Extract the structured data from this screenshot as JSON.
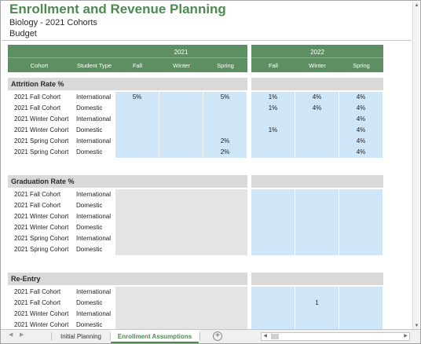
{
  "header": {
    "title": "Enrollment and Revenue Planning",
    "subtitle": "Biology - 2021 Cohorts",
    "scenario": "Budget"
  },
  "columns": {
    "cohort": "Cohort",
    "student_type": "Student Type",
    "years": [
      {
        "label": "2021",
        "terms": [
          "Fall",
          "Winter",
          "Spring"
        ]
      },
      {
        "label": "2022",
        "terms": [
          "Fall",
          "Winter",
          "Spring"
        ]
      }
    ]
  },
  "sections": [
    {
      "title": "Attrition Rate %",
      "rows": [
        {
          "cohort": "2021 Fall Cohort",
          "type": "International",
          "values": [
            "5%",
            "",
            "5%",
            "1%",
            "4%",
            "4%"
          ]
        },
        {
          "cohort": "2021 Fall Cohort",
          "type": "Domestic",
          "values": [
            "",
            "",
            "",
            "1%",
            "4%",
            "4%"
          ]
        },
        {
          "cohort": "2021 Winter Cohort",
          "type": "International",
          "values": [
            "",
            "",
            "",
            "",
            "",
            "4%"
          ]
        },
        {
          "cohort": "2021 Winter Cohort",
          "type": "Domestic",
          "values": [
            "",
            "",
            "",
            "1%",
            "",
            "4%"
          ]
        },
        {
          "cohort": "2021 Spring Cohort",
          "type": "International",
          "values": [
            "",
            "",
            "2%",
            "",
            "",
            "4%"
          ]
        },
        {
          "cohort": "2021 Spring Cohort",
          "type": "Domestic",
          "values": [
            "",
            "",
            "2%",
            "",
            "",
            "4%"
          ]
        }
      ]
    },
    {
      "title": "Graduation Rate %",
      "rows": [
        {
          "cohort": "2021 Fall Cohort",
          "type": "International",
          "values": [
            "",
            "",
            "",
            "",
            "",
            ""
          ]
        },
        {
          "cohort": "2021 Fall Cohort",
          "type": "Domestic",
          "values": [
            "",
            "",
            "",
            "",
            "",
            ""
          ]
        },
        {
          "cohort": "2021 Winter Cohort",
          "type": "International",
          "values": [
            "",
            "",
            "",
            "",
            "",
            ""
          ]
        },
        {
          "cohort": "2021 Winter Cohort",
          "type": "Domestic",
          "values": [
            "",
            "",
            "",
            "",
            "",
            ""
          ]
        },
        {
          "cohort": "2021 Spring Cohort",
          "type": "International",
          "values": [
            "",
            "",
            "",
            "",
            "",
            ""
          ]
        },
        {
          "cohort": "2021 Spring Cohort",
          "type": "Domestic",
          "values": [
            "",
            "",
            "",
            "",
            "",
            ""
          ]
        }
      ]
    },
    {
      "title": "Re-Entry",
      "rows": [
        {
          "cohort": "2021 Fall Cohort",
          "type": "International",
          "values": [
            "",
            "",
            "",
            "",
            "",
            ""
          ]
        },
        {
          "cohort": "2021 Fall Cohort",
          "type": "Domestic",
          "values": [
            "",
            "",
            "",
            "",
            "1",
            ""
          ]
        },
        {
          "cohort": "2021 Winter Cohort",
          "type": "International",
          "values": [
            "",
            "",
            "",
            "",
            "",
            ""
          ]
        },
        {
          "cohort": "2021 Winter Cohort",
          "type": "Domestic",
          "values": [
            "",
            "",
            "",
            "",
            "",
            ""
          ]
        },
        {
          "cohort": "2021 Spring Cohort",
          "type": "International",
          "values": [
            "",
            "",
            "",
            "",
            "",
            ""
          ]
        }
      ]
    }
  ],
  "sheet_tabs": [
    {
      "label": "Initial Planning",
      "active": false
    },
    {
      "label": "Enrollment Assumptions",
      "active": true
    }
  ],
  "icons": {
    "add_sheet": "plus-circle-icon",
    "nav_prev": "triangle-left-icon",
    "nav_next": "triangle-right-icon"
  },
  "colors": {
    "accent": "#4e8a52",
    "header_fill": "#5d8f62",
    "input_fill": "#cfe6f8",
    "locked_fill": "#e4e4e4"
  }
}
